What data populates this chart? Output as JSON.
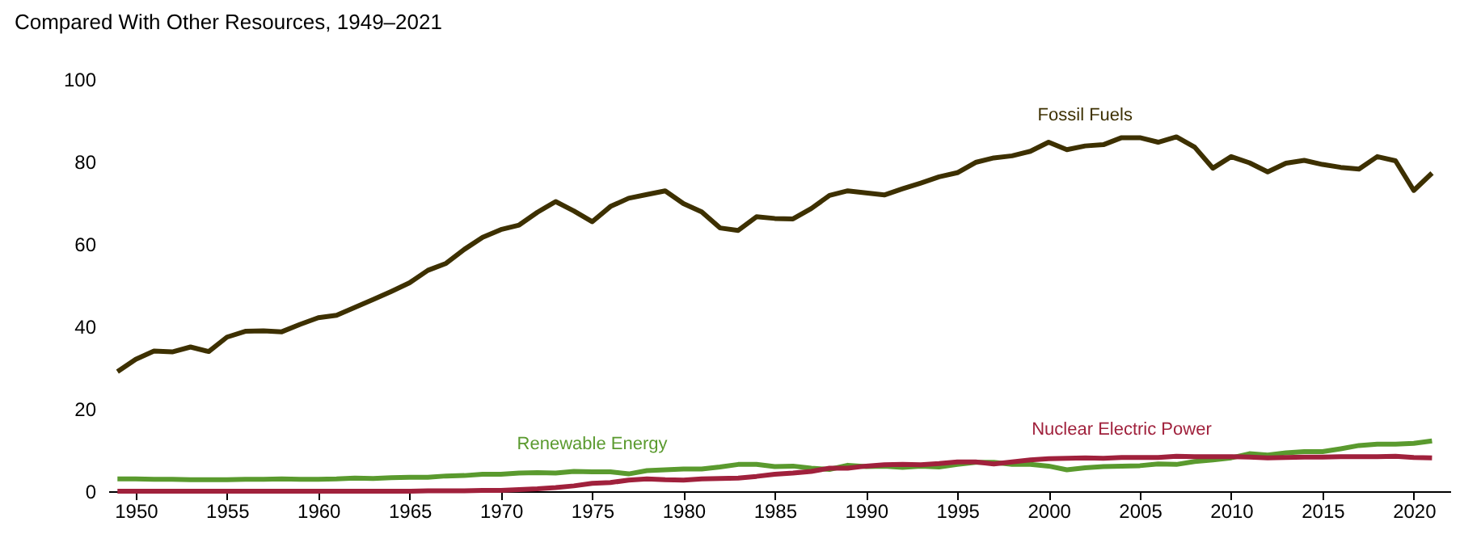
{
  "chart_data": {
    "type": "line",
    "title": "Compared With Other Resources, 1949–2021",
    "x": [
      1949,
      1950,
      1951,
      1952,
      1953,
      1954,
      1955,
      1956,
      1957,
      1958,
      1959,
      1960,
      1961,
      1962,
      1963,
      1964,
      1965,
      1966,
      1967,
      1968,
      1969,
      1970,
      1971,
      1972,
      1973,
      1974,
      1975,
      1976,
      1977,
      1978,
      1979,
      1980,
      1981,
      1982,
      1983,
      1984,
      1985,
      1986,
      1987,
      1988,
      1989,
      1990,
      1991,
      1992,
      1993,
      1994,
      1995,
      1996,
      1997,
      1998,
      1999,
      2000,
      2001,
      2002,
      2003,
      2004,
      2005,
      2006,
      2007,
      2008,
      2009,
      2010,
      2011,
      2012,
      2013,
      2014,
      2015,
      2016,
      2017,
      2018,
      2019,
      2020,
      2021
    ],
    "series": [
      {
        "name": "Fossil Fuels",
        "color": "#3d3000",
        "values": [
          29.0,
          32.0,
          34.0,
          33.8,
          35.0,
          33.9,
          37.4,
          38.8,
          38.9,
          38.7,
          40.5,
          42.1,
          42.7,
          44.6,
          46.5,
          48.5,
          50.6,
          53.6,
          55.3,
          58.7,
          61.6,
          63.5,
          64.6,
          67.7,
          70.3,
          68.0,
          65.4,
          69.1,
          71.1,
          72.0,
          72.9,
          69.8,
          67.8,
          63.9,
          63.3,
          66.6,
          66.2,
          66.1,
          68.6,
          71.8,
          72.9,
          72.4,
          71.9,
          73.4,
          74.8,
          76.3,
          77.3,
          79.8,
          80.9,
          81.4,
          82.5,
          84.7,
          82.9,
          83.8,
          84.1,
          85.8,
          85.8,
          84.7,
          86.0,
          83.5,
          78.4,
          81.2,
          79.7,
          77.5,
          79.6,
          80.3,
          79.3,
          78.6,
          78.2,
          81.2,
          80.2,
          73.0,
          77.2
        ]
      },
      {
        "name": "Renewable Energy",
        "color": "#5a9a2e",
        "values": [
          3.0,
          3.0,
          2.9,
          2.9,
          2.8,
          2.8,
          2.8,
          2.9,
          2.9,
          3.0,
          2.9,
          2.9,
          3.0,
          3.2,
          3.1,
          3.3,
          3.4,
          3.4,
          3.7,
          3.8,
          4.1,
          4.1,
          4.4,
          4.5,
          4.4,
          4.8,
          4.7,
          4.7,
          4.2,
          5.0,
          5.2,
          5.4,
          5.4,
          5.9,
          6.5,
          6.5,
          6.0,
          6.1,
          5.6,
          5.3,
          6.3,
          6.0,
          6.1,
          5.8,
          6.1,
          5.9,
          6.5,
          7.0,
          7.0,
          6.5,
          6.5,
          6.1,
          5.2,
          5.7,
          6.0,
          6.1,
          6.2,
          6.6,
          6.5,
          7.2,
          7.6,
          8.1,
          9.1,
          8.8,
          9.3,
          9.6,
          9.6,
          10.3,
          11.1,
          11.4,
          11.4,
          11.6,
          12.2
        ]
      },
      {
        "name": "Nuclear Electric Power",
        "color": "#a0213c",
        "values": [
          0,
          0,
          0,
          0,
          0,
          0,
          0,
          0,
          0,
          0,
          0,
          0,
          0,
          0,
          0,
          0,
          0.0,
          0.1,
          0.1,
          0.1,
          0.2,
          0.2,
          0.4,
          0.6,
          0.9,
          1.3,
          1.9,
          2.1,
          2.7,
          3.0,
          2.8,
          2.7,
          3.0,
          3.1,
          3.2,
          3.6,
          4.1,
          4.4,
          4.8,
          5.6,
          5.6,
          6.1,
          6.4,
          6.5,
          6.4,
          6.7,
          7.1,
          7.1,
          6.6,
          7.1,
          7.6,
          7.9,
          8.0,
          8.1,
          8.0,
          8.2,
          8.2,
          8.2,
          8.5,
          8.4,
          8.4,
          8.4,
          8.3,
          8.1,
          8.2,
          8.3,
          8.3,
          8.4,
          8.4,
          8.4,
          8.5,
          8.2,
          8.1
        ]
      }
    ],
    "xlim": [
      1948.5,
      2022
    ],
    "xticks": [
      1950,
      1955,
      1960,
      1965,
      1970,
      1975,
      1980,
      1985,
      1990,
      1995,
      2000,
      2005,
      2010,
      2015,
      2020
    ],
    "ylim": [
      0,
      100
    ],
    "yticks": [
      0,
      20,
      40,
      60,
      80,
      100
    ],
    "grid": false,
    "line_style": "solid",
    "marker": "none"
  }
}
